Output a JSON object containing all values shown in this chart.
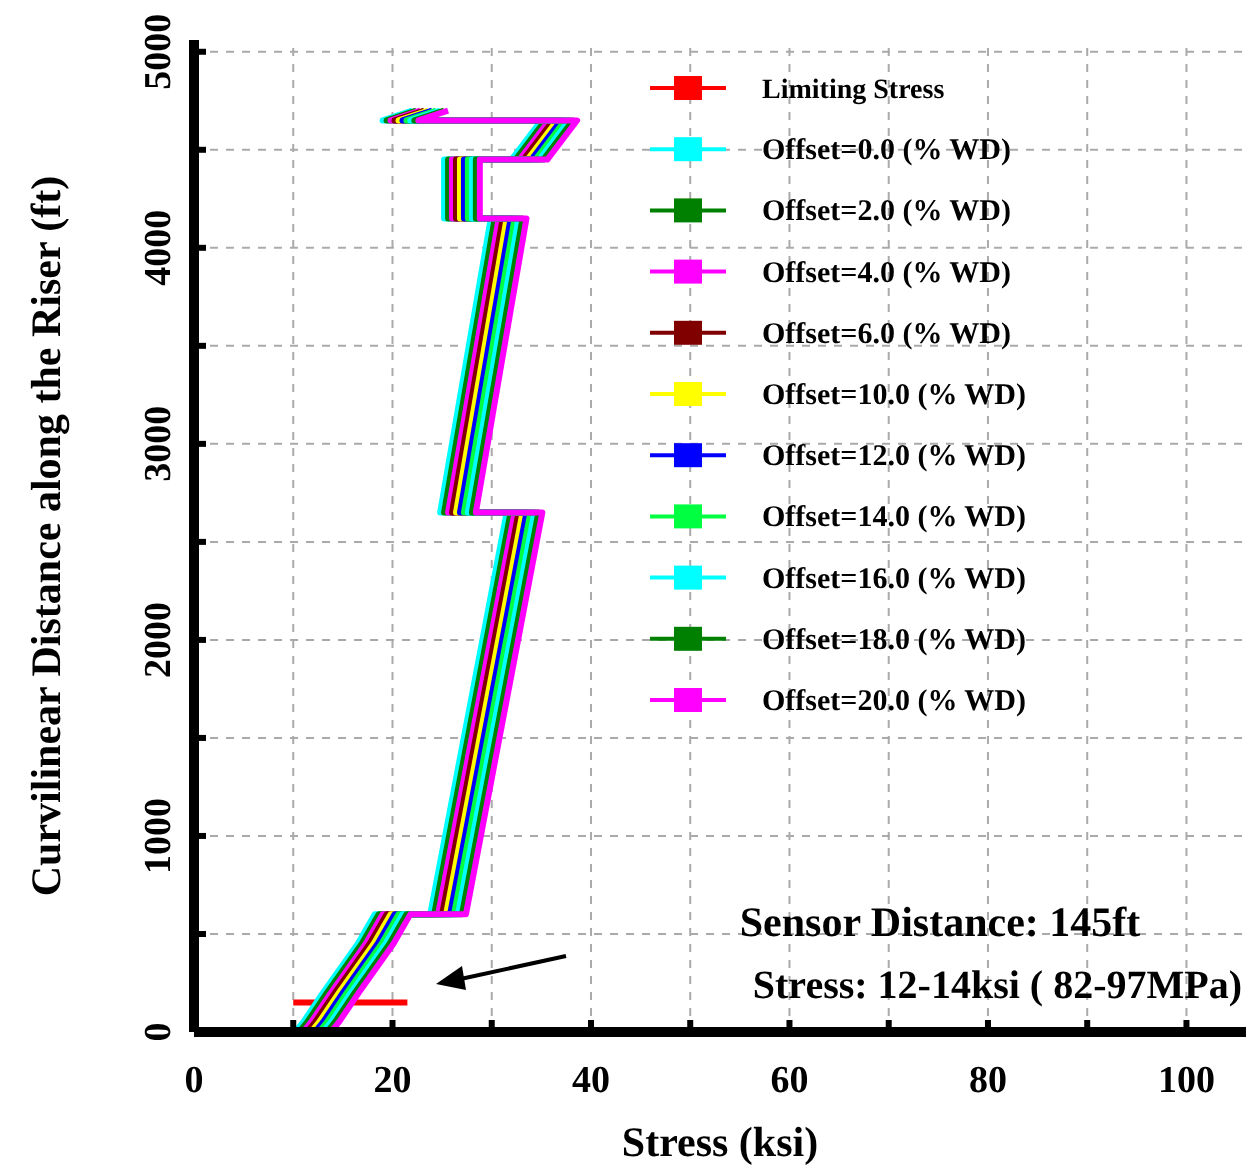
{
  "chart_data": {
    "type": "line",
    "xlabel": "Stress (ksi)",
    "ylabel": "Curvilinear Distance along the Riser (ft)",
    "xlim": [
      0,
      106
    ],
    "ylim": [
      0,
      5060
    ],
    "xticks": [
      0,
      {
        "value": 10,
        "label": null
      },
      20,
      {
        "value": 30,
        "label": null
      },
      40,
      {
        "value": 50,
        "label": null
      },
      60,
      {
        "value": 70,
        "label": null
      },
      80,
      {
        "value": 90,
        "label": null
      },
      100
    ],
    "yticks": [
      0,
      {
        "value": 500,
        "label": null
      },
      1000,
      {
        "value": 1500,
        "label": null
      },
      2000,
      {
        "value": 2500,
        "label": null
      },
      3000,
      {
        "value": 3500,
        "label": null
      },
      4000,
      {
        "value": 4500,
        "label": null
      },
      5000
    ],
    "grid": true,
    "legend": "top right",
    "line_style": "solid",
    "series": [
      {
        "name": "Limiting Stress",
        "color": "#ff0000",
        "x": [
          10,
          21.5
        ],
        "values": [
          150,
          150
        ]
      },
      {
        "name": "Offset=0.0  (% WD)",
        "color": "#00ffff",
        "x": [
          10.2,
          11,
          13,
          16.5,
          18.2,
          23.8,
          31.5,
          24.8,
          29.9,
          25.2,
          25.2,
          32,
          35,
          19,
          22
        ],
        "values": [
          0,
          50,
          200,
          450,
          600,
          600,
          2650,
          2650,
          4150,
          4150,
          4450,
          4450,
          4650,
          4650,
          4700
        ]
      },
      {
        "name": "Offset=2.0  (% WD)",
        "color": "#008000",
        "x": [
          10.6,
          11.4,
          13.4,
          16.9,
          18.6,
          24.2,
          31.9,
          25.2,
          30.3,
          25.6,
          25.6,
          32.4,
          35.4,
          19.4,
          22.4
        ],
        "values": [
          0,
          50,
          200,
          450,
          600,
          600,
          2650,
          2650,
          4150,
          4150,
          4450,
          4450,
          4650,
          4650,
          4700
        ]
      },
      {
        "name": "Offset=4.0  (% WD)",
        "color": "#ff00ff",
        "x": [
          11,
          11.8,
          13.8,
          17.3,
          19,
          24.6,
          32.3,
          25.6,
          30.7,
          26,
          26,
          32.8,
          35.8,
          19.8,
          22.8
        ],
        "values": [
          0,
          50,
          200,
          450,
          600,
          600,
          2650,
          2650,
          4150,
          4150,
          4450,
          4450,
          4650,
          4650,
          4700
        ]
      },
      {
        "name": "Offset=6.0  (% WD)",
        "color": "#800000",
        "x": [
          11.4,
          12.2,
          14.2,
          17.7,
          19.4,
          25,
          32.7,
          26,
          31.1,
          26.4,
          26.4,
          33.2,
          36.2,
          20.2,
          23.2
        ],
        "values": [
          0,
          50,
          200,
          450,
          600,
          600,
          2650,
          2650,
          4150,
          4150,
          4450,
          4450,
          4650,
          4650,
          4700
        ]
      },
      {
        "name": "Offset=10.0  (% WD)",
        "color": "#ffff00",
        "x": [
          11.8,
          12.6,
          14.6,
          18.1,
          19.8,
          25.4,
          33.1,
          26.4,
          31.5,
          26.8,
          26.8,
          33.6,
          36.6,
          20.6,
          23.6
        ],
        "values": [
          0,
          50,
          200,
          450,
          600,
          600,
          2650,
          2650,
          4150,
          4150,
          4450,
          4450,
          4650,
          4650,
          4700
        ]
      },
      {
        "name": "Offset=12.0  (% WD)",
        "color": "#0000ff",
        "x": [
          12.2,
          13,
          15,
          18.5,
          20.2,
          25.8,
          33.5,
          26.8,
          31.9,
          27.2,
          27.2,
          34,
          37,
          21,
          24
        ],
        "values": [
          0,
          50,
          200,
          450,
          600,
          600,
          2650,
          2650,
          4150,
          4150,
          4450,
          4450,
          4650,
          4650,
          4700
        ]
      },
      {
        "name": "Offset=14.0  (% WD)",
        "color": "#00ff40",
        "x": [
          12.6,
          13.4,
          15.4,
          18.9,
          20.6,
          26.2,
          33.9,
          27.2,
          32.3,
          27.6,
          27.6,
          34.4,
          37.4,
          21.4,
          24.4
        ],
        "values": [
          0,
          50,
          200,
          450,
          600,
          600,
          2650,
          2650,
          4150,
          4150,
          4450,
          4450,
          4650,
          4650,
          4700
        ]
      },
      {
        "name": "Offset=16.0  (% WD)",
        "color": "#00ffff",
        "x": [
          13,
          13.8,
          15.8,
          19.3,
          21,
          26.6,
          34.3,
          27.6,
          32.7,
          28,
          28,
          34.8,
          37.8,
          21.8,
          24.8
        ],
        "values": [
          0,
          50,
          200,
          450,
          600,
          600,
          2650,
          2650,
          4150,
          4150,
          4450,
          4450,
          4650,
          4650,
          4700
        ]
      },
      {
        "name": "Offset=18.0  (% WD)",
        "color": "#008000",
        "x": [
          13.4,
          14.2,
          16.2,
          19.7,
          21.4,
          27,
          34.7,
          28,
          33.1,
          28.4,
          28.4,
          35.2,
          38.2,
          22.2,
          25.2
        ],
        "values": [
          0,
          50,
          200,
          450,
          600,
          600,
          2650,
          2650,
          4150,
          4150,
          4450,
          4450,
          4650,
          4650,
          4700
        ]
      },
      {
        "name": "Offset=20.0  (% WD)",
        "color": "#ff00ff",
        "x": [
          13.8,
          14.6,
          16.6,
          20.1,
          21.8,
          27.4,
          35.1,
          28.4,
          33.5,
          28.8,
          28.8,
          35.6,
          38.6,
          22.6,
          25.6
        ],
        "values": [
          0,
          50,
          200,
          450,
          600,
          600,
          2650,
          2650,
          4150,
          4150,
          4450,
          4450,
          4650,
          4650,
          4700
        ]
      }
    ],
    "annotations": [
      "Sensor Distance: 145ft",
      "Stress: 12-14ksi ( 82-97MPa)"
    ]
  }
}
